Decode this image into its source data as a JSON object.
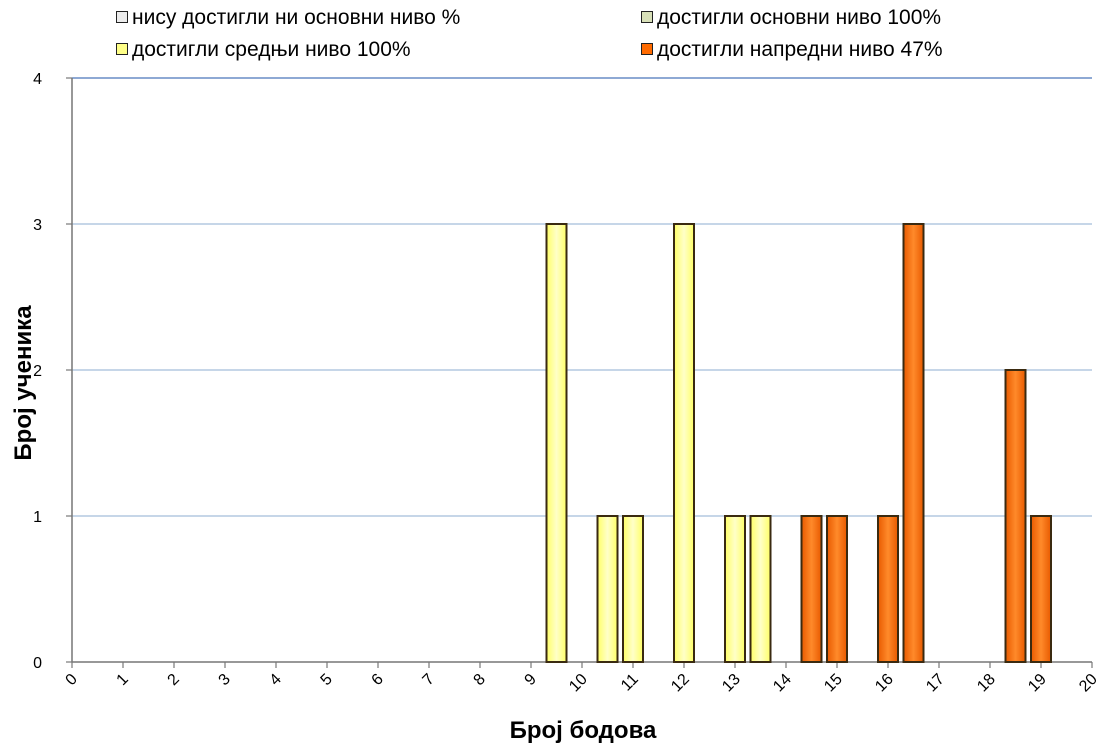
{
  "chart_data": {
    "type": "bar",
    "xlabel": "Број бодова",
    "ylabel": "Број ученика",
    "ylim": [
      0,
      4
    ],
    "yticks": [
      "0",
      "1",
      "2",
      "3",
      "4"
    ],
    "xticks": [
      "0",
      "1",
      "2",
      "3",
      "4",
      "5",
      "6",
      "7",
      "8",
      "9",
      "10",
      "11",
      "12",
      "13",
      "14",
      "15",
      "16",
      "17",
      "18",
      "19",
      "20"
    ],
    "grid": true,
    "legend_position": "top",
    "series": [
      {
        "name": "нису достигли ни основни ниво %",
        "color": "#ececec",
        "x": [],
        "values": []
      },
      {
        "name": "достигли основни ниво 100%",
        "color": "#d8e0b8",
        "x": [],
        "values": []
      },
      {
        "name": "достигли средњи ниво 100%",
        "color": "#ffff88",
        "x": [
          9.5,
          10.5,
          11,
          12,
          13,
          13.5
        ],
        "values": [
          3,
          1,
          1,
          3,
          1,
          1
        ]
      },
      {
        "name": "достигли напредни ниво 47%",
        "color": "#ff6a00",
        "x": [
          14.5,
          15,
          16,
          16.5,
          18.5,
          19
        ],
        "values": [
          1,
          1,
          1,
          3,
          2,
          1
        ]
      }
    ]
  }
}
